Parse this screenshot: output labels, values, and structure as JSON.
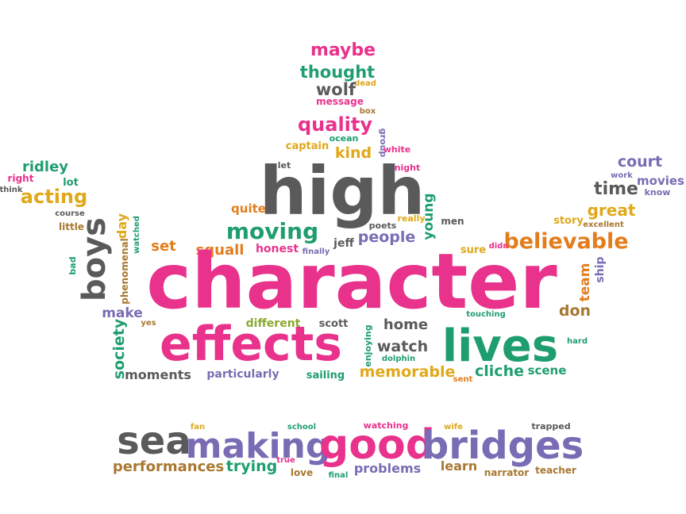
{
  "palette": {
    "pink": "#e8328c",
    "green": "#1e9e6e",
    "gray": "#5a5a5a",
    "purple": "#7a6cb4",
    "orange": "#e37d1c",
    "gold": "#e0a81a",
    "olive": "#8aa830",
    "brown": "#a87830",
    "lightgray": "#8c8c8c"
  },
  "words": [
    {
      "text": "maybe",
      "color": "pink"
    },
    {
      "text": "thought",
      "color": "green"
    },
    {
      "text": "dead",
      "color": "gold"
    },
    {
      "text": "wolf",
      "color": "gray"
    },
    {
      "text": "message",
      "color": "pink"
    },
    {
      "text": "box",
      "color": "brown"
    },
    {
      "text": "quality",
      "color": "pink"
    },
    {
      "text": "ocean",
      "color": "green"
    },
    {
      "text": "group",
      "color": "purple"
    },
    {
      "text": "captain",
      "color": "gold"
    },
    {
      "text": "kind",
      "color": "gold"
    },
    {
      "text": "white",
      "color": "pink"
    },
    {
      "text": "let",
      "color": "gray"
    },
    {
      "text": "night",
      "color": "pink"
    },
    {
      "text": "high",
      "color": "gray"
    },
    {
      "text": "young",
      "color": "green"
    },
    {
      "text": "really",
      "color": "gold"
    },
    {
      "text": "men",
      "color": "gray"
    },
    {
      "text": "court",
      "color": "purple"
    },
    {
      "text": "work",
      "color": "purple"
    },
    {
      "text": "movies",
      "color": "purple"
    },
    {
      "text": "time",
      "color": "gray"
    },
    {
      "text": "know",
      "color": "purple"
    },
    {
      "text": "great",
      "color": "gold"
    },
    {
      "text": "story",
      "color": "gold"
    },
    {
      "text": "excellent",
      "color": "brown"
    },
    {
      "text": "ridley",
      "color": "green"
    },
    {
      "text": "right",
      "color": "pink"
    },
    {
      "text": "lot",
      "color": "green"
    },
    {
      "text": "think",
      "color": "gray"
    },
    {
      "text": "acting",
      "color": "gold"
    },
    {
      "text": "course",
      "color": "gray"
    },
    {
      "text": "little",
      "color": "brown"
    },
    {
      "text": "quite",
      "color": "orange"
    },
    {
      "text": "moving",
      "color": "green"
    },
    {
      "text": "poets",
      "color": "gray"
    },
    {
      "text": "jeff",
      "color": "gray"
    },
    {
      "text": "people",
      "color": "purple"
    },
    {
      "text": "believable",
      "color": "orange"
    },
    {
      "text": "boys",
      "color": "gray"
    },
    {
      "text": "day",
      "color": "gold"
    },
    {
      "text": "watched",
      "color": "green"
    },
    {
      "text": "phenomenal",
      "color": "brown"
    },
    {
      "text": "set",
      "color": "orange"
    },
    {
      "text": "squall",
      "color": "orange"
    },
    {
      "text": "honest",
      "color": "pink"
    },
    {
      "text": "finally",
      "color": "purple"
    },
    {
      "text": "sure",
      "color": "gold"
    },
    {
      "text": "didn",
      "color": "pink"
    },
    {
      "text": "bad",
      "color": "green"
    },
    {
      "text": "character",
      "color": "pink"
    },
    {
      "text": "team",
      "color": "orange"
    },
    {
      "text": "ship",
      "color": "purple"
    },
    {
      "text": "make",
      "color": "purple"
    },
    {
      "text": "yes",
      "color": "brown"
    },
    {
      "text": "don",
      "color": "brown"
    },
    {
      "text": "touching",
      "color": "green"
    },
    {
      "text": "effects",
      "color": "pink"
    },
    {
      "text": "different",
      "color": "olive"
    },
    {
      "text": "scott",
      "color": "gray"
    },
    {
      "text": "home",
      "color": "gray"
    },
    {
      "text": "enjoying",
      "color": "green"
    },
    {
      "text": "lives",
      "color": "green"
    },
    {
      "text": "society",
      "color": "green"
    },
    {
      "text": "hard",
      "color": "green"
    },
    {
      "text": "watch",
      "color": "gray"
    },
    {
      "text": "dolphin",
      "color": "green"
    },
    {
      "text": "moments",
      "color": "gray"
    },
    {
      "text": "particularly",
      "color": "purple"
    },
    {
      "text": "sailing",
      "color": "green"
    },
    {
      "text": "memorable",
      "color": "gold"
    },
    {
      "text": "sent",
      "color": "orange"
    },
    {
      "text": "cliche",
      "color": "green"
    },
    {
      "text": "scene",
      "color": "green"
    },
    {
      "text": "fan",
      "color": "gold"
    },
    {
      "text": "school",
      "color": "green"
    },
    {
      "text": "watching",
      "color": "pink"
    },
    {
      "text": "wife",
      "color": "gold"
    },
    {
      "text": "trapped",
      "color": "gray"
    },
    {
      "text": "sea",
      "color": "gray"
    },
    {
      "text": "making",
      "color": "purple"
    },
    {
      "text": "good",
      "color": "pink"
    },
    {
      "text": "bridges",
      "color": "purple"
    },
    {
      "text": "performances",
      "color": "brown"
    },
    {
      "text": "trying",
      "color": "green"
    },
    {
      "text": "true",
      "color": "pink"
    },
    {
      "text": "love",
      "color": "brown"
    },
    {
      "text": "final",
      "color": "green"
    },
    {
      "text": "problems",
      "color": "purple"
    },
    {
      "text": "learn",
      "color": "brown"
    },
    {
      "text": "narrator",
      "color": "brown"
    },
    {
      "text": "teacher",
      "color": "brown"
    }
  ]
}
